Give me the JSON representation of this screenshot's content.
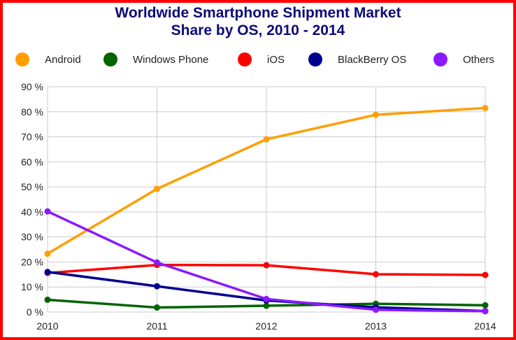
{
  "chart_data": {
    "type": "line",
    "title_lines": [
      "Worldwide Smartphone Shipment Market",
      "Share by OS, 2010 - 2014"
    ],
    "x": [
      "2010",
      "2011",
      "2012",
      "2013",
      "2014"
    ],
    "ylim": [
      0,
      90
    ],
    "yticks": [
      "0 %",
      "10 %",
      "20 %",
      "30 %",
      "40 %",
      "50 %",
      "60 %",
      "70 %",
      "80 %",
      "90 %"
    ],
    "grid": true,
    "legend_position": "top",
    "series": [
      {
        "name": "Android",
        "color": "#ff9f00",
        "values": [
          23.3,
          49.2,
          69.0,
          78.8,
          81.5
        ]
      },
      {
        "name": "Windows Phone",
        "color": "#006400",
        "values": [
          4.9,
          1.8,
          2.5,
          3.3,
          2.7
        ]
      },
      {
        "name": "iOS",
        "color": "#ff0000",
        "values": [
          15.6,
          18.8,
          18.7,
          15.1,
          14.8
        ]
      },
      {
        "name": "BlackBerry OS",
        "color": "#000090",
        "values": [
          16.0,
          10.3,
          4.6,
          1.9,
          0.4
        ]
      },
      {
        "name": "Others",
        "color": "#8b19ff",
        "values": [
          40.2,
          19.8,
          5.2,
          0.9,
          0.3
        ]
      }
    ]
  }
}
